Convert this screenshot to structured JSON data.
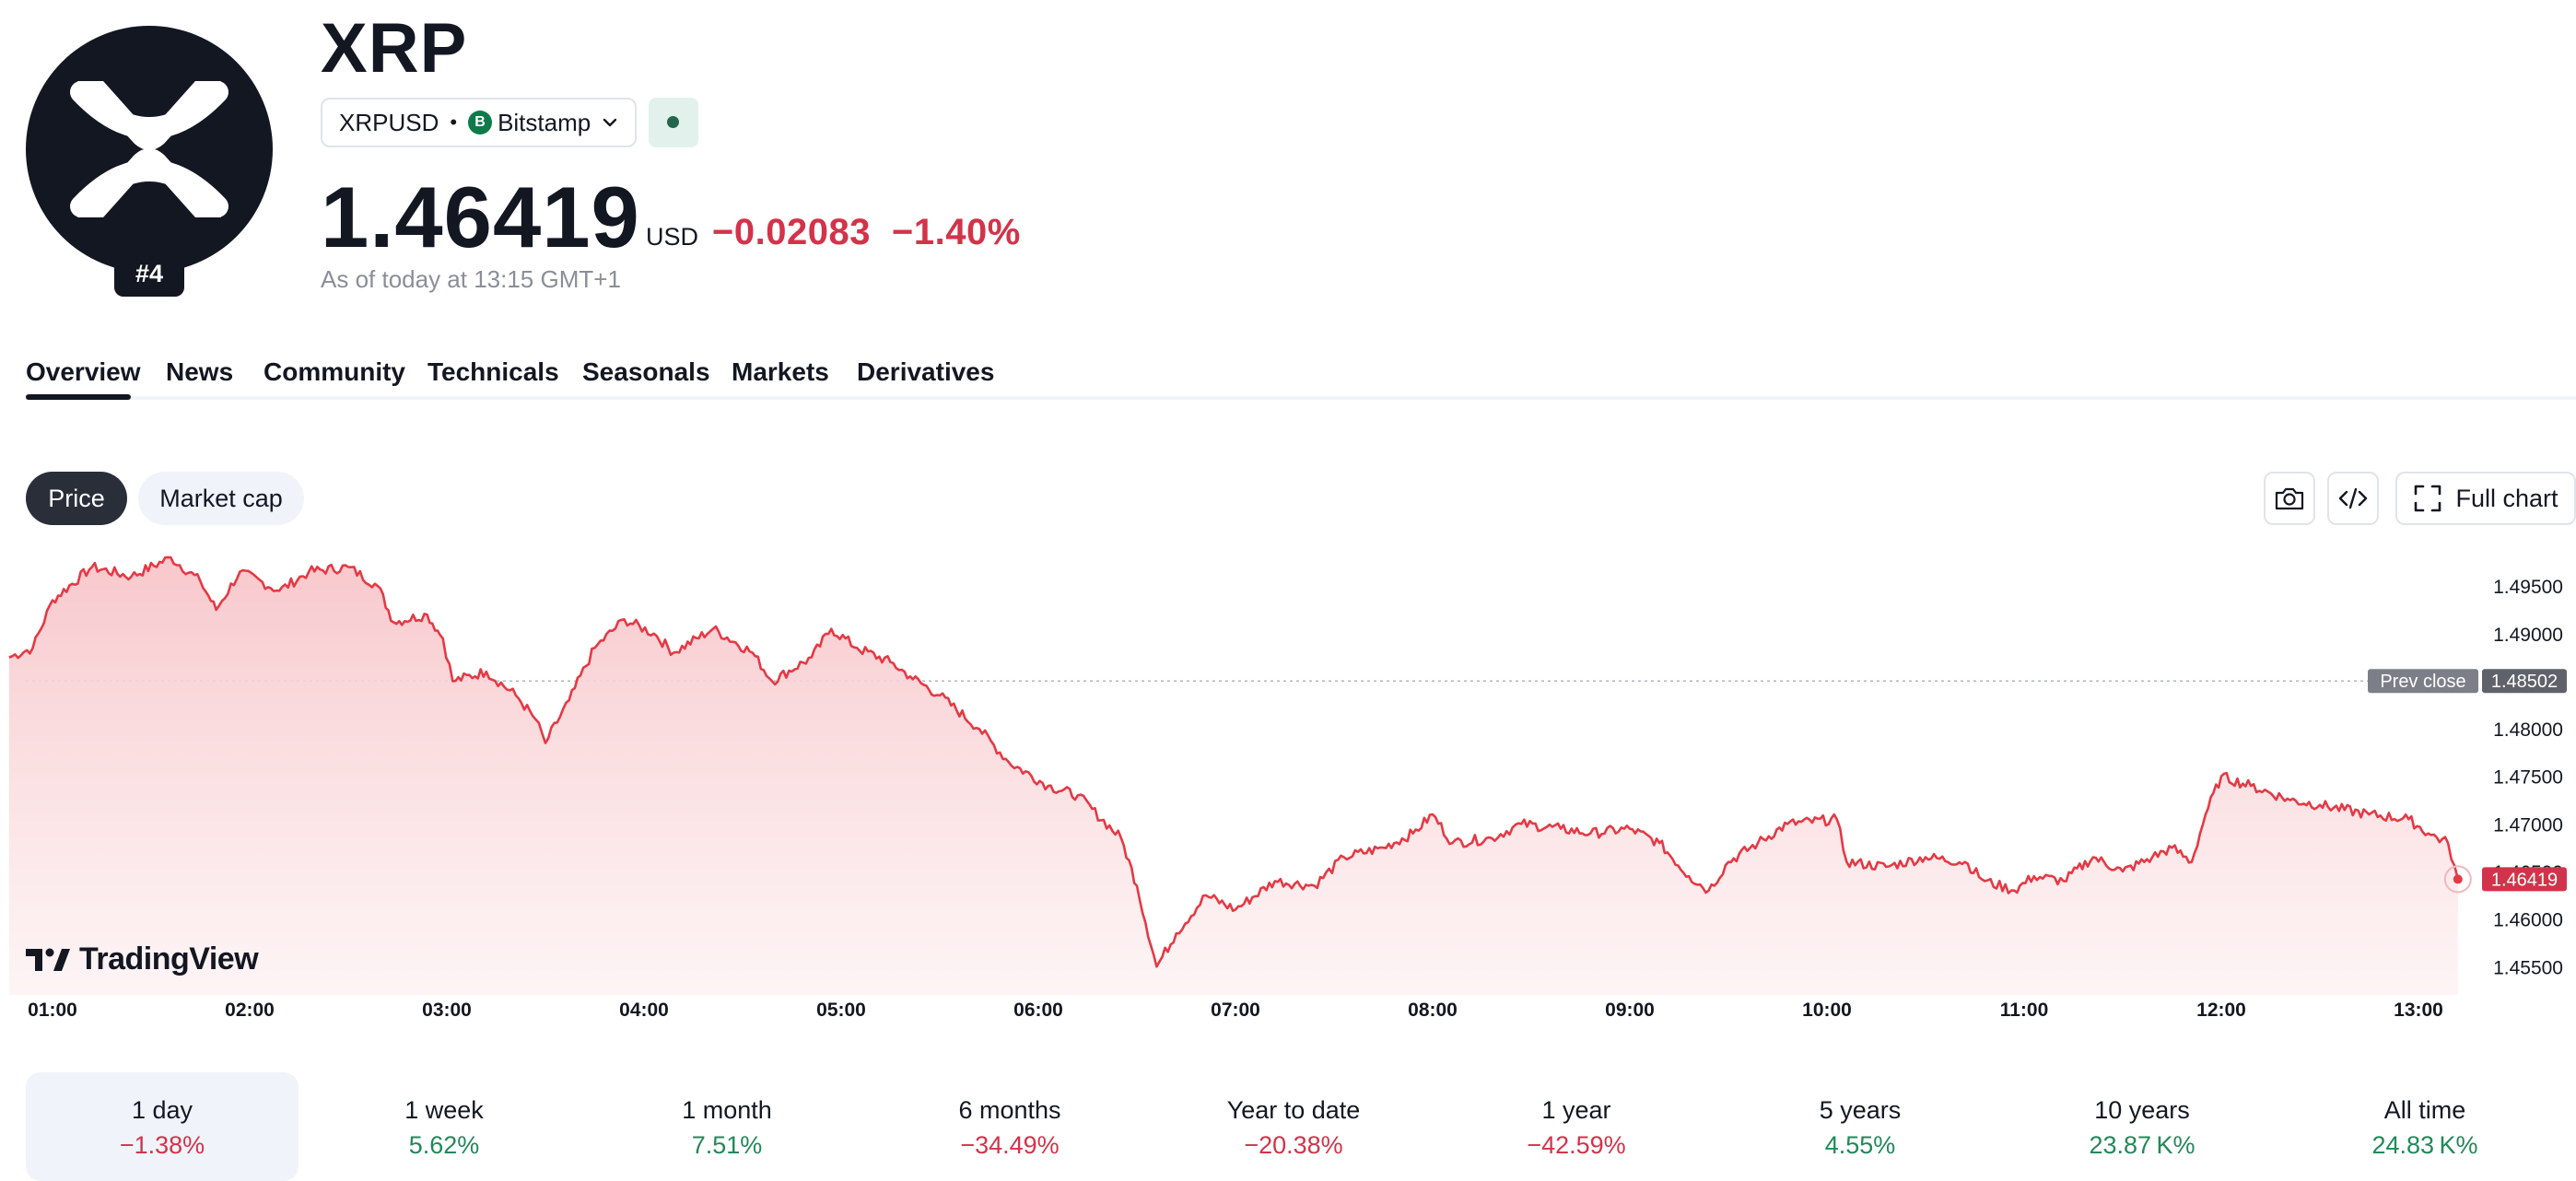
{
  "asset": {
    "name": "XRP",
    "rank": "#4",
    "symbol": "XRPUSD",
    "separator": "•",
    "exchange": "Bitstamp",
    "exchange_icon_letter": "B",
    "logo_icon": "xrp-logo",
    "status_icon": "market-open-dot"
  },
  "quote": {
    "price": "1.46419",
    "currency": "USD",
    "change": "−0.02083",
    "change_percent": "−1.40%",
    "as_of": "As of today at 13:15 GMT+1"
  },
  "tabs": [
    {
      "label": "Overview",
      "active": true
    },
    {
      "label": "News"
    },
    {
      "label": "Community"
    },
    {
      "label": "Technicals"
    },
    {
      "label": "Seasonals"
    },
    {
      "label": "Markets"
    },
    {
      "label": "Derivatives"
    }
  ],
  "chart_toggle": {
    "price_label": "Price",
    "market_cap_label": "Market cap",
    "active": "Price"
  },
  "toolbar": {
    "camera_icon": "camera-icon",
    "embed_icon": "code-icon",
    "full_chart_label": "Full chart",
    "full_chart_icon": "expand-icon"
  },
  "branding": {
    "tradingview": "TradingView"
  },
  "colors": {
    "negative": "#d3334a",
    "positive": "#22885a",
    "line": "#e53945"
  },
  "chart_data": {
    "type": "area",
    "x_ticks": [
      "01:00",
      "02:00",
      "03:00",
      "04:00",
      "05:00",
      "06:00",
      "07:00",
      "08:00",
      "09:00",
      "10:00",
      "11:00",
      "12:00",
      "13:00"
    ],
    "y_ticks": [
      "1.45500",
      "1.46000",
      "1.46500",
      "1.47000",
      "1.47500",
      "1.48000",
      "1.48502",
      "1.49000",
      "1.49500"
    ],
    "ylim": [
      1.453,
      1.4985
    ],
    "prev_close_label": "Prev close",
    "prev_close": "1.48502",
    "last_price": "1.46419",
    "series": [
      {
        "values": [
          [
            0.78,
            1.4875
          ],
          [
            0.9,
            1.4885
          ],
          [
            1.0,
            1.4935
          ],
          [
            1.2,
            1.497
          ],
          [
            1.4,
            1.496
          ],
          [
            1.6,
            1.498
          ],
          [
            1.75,
            1.4955
          ],
          [
            1.83,
            1.4925
          ],
          [
            1.95,
            1.4965
          ],
          [
            2.15,
            1.4945
          ],
          [
            2.3,
            1.4965
          ],
          [
            2.5,
            1.497
          ],
          [
            2.65,
            1.495
          ],
          [
            2.73,
            1.4912
          ],
          [
            2.9,
            1.492
          ],
          [
            2.98,
            1.4895
          ],
          [
            3.03,
            1.485
          ],
          [
            3.2,
            1.486
          ],
          [
            3.35,
            1.4835
          ],
          [
            3.45,
            1.481
          ],
          [
            3.5,
            1.4785
          ],
          [
            3.62,
            1.483
          ],
          [
            3.75,
            1.4885
          ],
          [
            3.9,
            1.4915
          ],
          [
            4.05,
            1.49
          ],
          [
            4.15,
            1.488
          ],
          [
            4.35,
            1.4905
          ],
          [
            4.55,
            1.488
          ],
          [
            4.65,
            1.485
          ],
          [
            4.85,
            1.4875
          ],
          [
            4.95,
            1.4905
          ],
          [
            5.08,
            1.4885
          ],
          [
            5.25,
            1.487
          ],
          [
            5.35,
            1.4855
          ],
          [
            5.5,
            1.4835
          ],
          [
            5.7,
            1.48
          ],
          [
            5.85,
            1.4765
          ],
          [
            6.05,
            1.474
          ],
          [
            6.2,
            1.473
          ],
          [
            6.42,
            1.4685
          ],
          [
            6.5,
            1.4635
          ],
          [
            6.6,
            1.455
          ],
          [
            6.7,
            1.4585
          ],
          [
            6.85,
            1.4625
          ],
          [
            7.0,
            1.461
          ],
          [
            7.2,
            1.464
          ],
          [
            7.4,
            1.4635
          ],
          [
            7.55,
            1.4665
          ],
          [
            7.75,
            1.4675
          ],
          [
            7.9,
            1.469
          ],
          [
            8.0,
            1.471
          ],
          [
            8.1,
            1.468
          ],
          [
            8.3,
            1.4685
          ],
          [
            8.45,
            1.47
          ],
          [
            8.65,
            1.4695
          ],
          [
            8.8,
            1.469
          ],
          [
            9.0,
            1.4695
          ],
          [
            9.15,
            1.468
          ],
          [
            9.3,
            1.4645
          ],
          [
            9.4,
            1.463
          ],
          [
            9.5,
            1.466
          ],
          [
            9.65,
            1.468
          ],
          [
            9.8,
            1.47
          ],
          [
            10.05,
            1.4705
          ],
          [
            10.1,
            1.466
          ],
          [
            10.3,
            1.4655
          ],
          [
            10.5,
            1.4665
          ],
          [
            10.7,
            1.466
          ],
          [
            10.8,
            1.464
          ],
          [
            10.95,
            1.463
          ],
          [
            11.05,
            1.4645
          ],
          [
            11.2,
            1.464
          ],
          [
            11.35,
            1.4665
          ],
          [
            11.5,
            1.465
          ],
          [
            11.65,
            1.4665
          ],
          [
            11.75,
            1.4675
          ],
          [
            11.85,
            1.466
          ],
          [
            11.92,
            1.471
          ],
          [
            12.0,
            1.475
          ],
          [
            12.15,
            1.474
          ],
          [
            12.35,
            1.4725
          ],
          [
            12.5,
            1.472
          ],
          [
            12.75,
            1.471
          ],
          [
            12.95,
            1.4705
          ],
          [
            13.05,
            1.469
          ],
          [
            13.15,
            1.468
          ],
          [
            13.2,
            1.46419
          ]
        ]
      }
    ]
  },
  "periods": [
    {
      "label": "1 day",
      "value": "−1.38%",
      "sign": "neg",
      "active": true
    },
    {
      "label": "1 week",
      "value": "5.62%",
      "sign": "pos"
    },
    {
      "label": "1 month",
      "value": "7.51%",
      "sign": "pos"
    },
    {
      "label": "6 months",
      "value": "−34.49%",
      "sign": "neg"
    },
    {
      "label": "Year to date",
      "value": "−20.38%",
      "sign": "neg"
    },
    {
      "label": "1 year",
      "value": "−42.59%",
      "sign": "neg"
    },
    {
      "label": "5 years",
      "value": "4.55%",
      "sign": "pos"
    },
    {
      "label": "10 years",
      "value": "23.87 K%",
      "sign": "pos"
    },
    {
      "label": "All time",
      "value": "24.83 K%",
      "sign": "pos"
    }
  ]
}
